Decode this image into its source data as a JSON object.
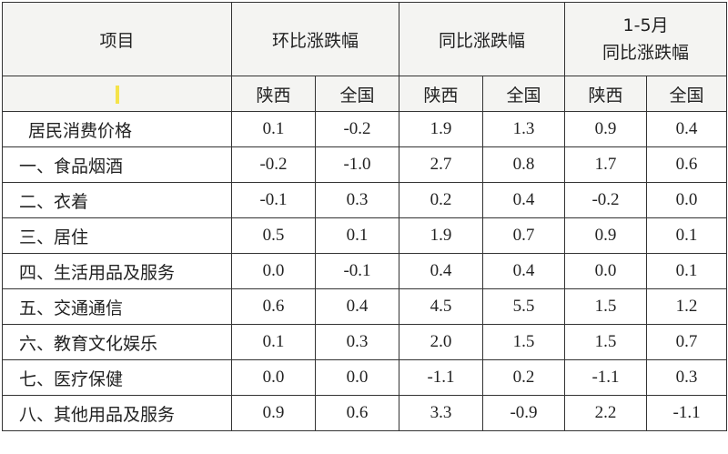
{
  "header": {
    "item_label": "项目",
    "group1_label": "环比涨跌幅",
    "group2_label": "同比涨跌幅",
    "group3_line1": "1-5月",
    "group3_line2": "同比涨跌幅",
    "sub_shaanxi": "陕西",
    "sub_national": "全国"
  },
  "rows": [
    {
      "item": "居民消费价格",
      "v": [
        "0.1",
        "-0.2",
        "1.9",
        "1.3",
        "0.9",
        "0.4"
      ]
    },
    {
      "item": "一、食品烟酒",
      "v": [
        "-0.2",
        "-1.0",
        "2.7",
        "0.8",
        "1.7",
        "0.6"
      ]
    },
    {
      "item": "二、衣着",
      "v": [
        "-0.1",
        "0.3",
        "0.2",
        "0.4",
        "-0.2",
        "0.0"
      ]
    },
    {
      "item": "三、居住",
      "v": [
        "0.5",
        "0.1",
        "1.9",
        "0.7",
        "0.9",
        "0.1"
      ]
    },
    {
      "item": "四、生活用品及服务",
      "v": [
        "0.0",
        "-0.1",
        "0.4",
        "0.4",
        "0.0",
        "0.1"
      ]
    },
    {
      "item": "五、交通通信",
      "v": [
        "0.6",
        "0.4",
        "4.5",
        "5.5",
        "1.5",
        "1.2"
      ]
    },
    {
      "item": "六、教育文化娱乐",
      "v": [
        "0.1",
        "0.3",
        "2.0",
        "1.5",
        "1.5",
        "0.7"
      ]
    },
    {
      "item": "七、医疗保健",
      "v": [
        "0.0",
        "0.0",
        "-1.1",
        "0.2",
        "-1.1",
        "0.3"
      ]
    },
    {
      "item": "八、其他用品及服务",
      "v": [
        "0.9",
        "0.6",
        "3.3",
        "-0.9",
        "2.2",
        "-1.1"
      ]
    }
  ]
}
